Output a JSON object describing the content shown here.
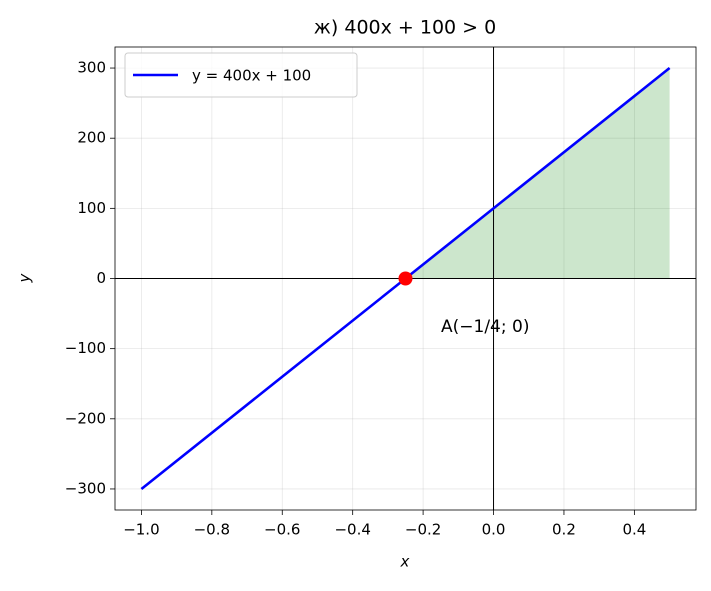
{
  "chart_data": {
    "type": "line",
    "title": "ж) 400x + 100 > 0",
    "xlabel": "x",
    "ylabel": "y",
    "x": [
      -1.0,
      0.5
    ],
    "series": [
      {
        "name": "y = 400x + 100",
        "color": "#0000ff",
        "values": [
          -300,
          300
        ]
      }
    ],
    "points": [
      {
        "x": -0.25,
        "y": 0,
        "color": "#ff0000"
      }
    ],
    "fill": {
      "x": [
        -0.25,
        0.5
      ],
      "upper": [
        0,
        300
      ],
      "lower": [
        0,
        0
      ],
      "color": "#008000",
      "alpha": 0.2
    },
    "axhline": 0,
    "axvline": 0,
    "annotation": "A(−1/4; 0)",
    "xlim": [
      -1.075,
      0.575
    ],
    "ylim": [
      -330,
      330
    ],
    "xticks": [
      {
        "value": -1.0,
        "label": "−1.0"
      },
      {
        "value": -0.8,
        "label": "−0.8"
      },
      {
        "value": -0.6,
        "label": "−0.6"
      },
      {
        "value": -0.4,
        "label": "−0.4"
      },
      {
        "value": -0.2,
        "label": "−0.2"
      },
      {
        "value": 0,
        "label": "0.0"
      },
      0.2,
      0.4
    ],
    "yticks": [
      {
        "value": -300,
        "label": "−300"
      },
      {
        "value": -200,
        "label": "−200"
      },
      {
        "value": -100,
        "label": "−100"
      },
      0,
      100,
      200,
      300
    ],
    "grid": true,
    "legend": "upper left"
  }
}
